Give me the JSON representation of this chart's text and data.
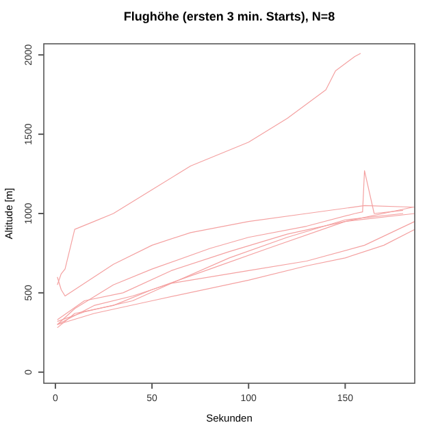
{
  "chart_data": {
    "type": "line",
    "title": "Flughöhe (ersten 3 min. Starts), N=8",
    "xlabel": "Sekunden",
    "ylabel": "Altitude [m]",
    "xlim": [
      -6,
      186
    ],
    "ylim": [
      -70,
      2070
    ],
    "xticks": [
      0,
      50,
      100,
      150
    ],
    "yticks": [
      0,
      500,
      1000,
      1500,
      2000
    ],
    "series": [
      {
        "color": "#f4a0a0",
        "x": [
          1,
          3,
          5,
          10,
          20,
          30,
          50,
          70,
          100,
          120,
          140,
          145,
          155,
          158
        ],
        "values": [
          550,
          620,
          650,
          900,
          950,
          1000,
          1150,
          1300,
          1450,
          1600,
          1780,
          1900,
          1990,
          2010
        ]
      },
      {
        "color": "#f4a0a0",
        "x": [
          1,
          3,
          5,
          10,
          20,
          30,
          50,
          70,
          100,
          130,
          160,
          186
        ],
        "values": [
          600,
          520,
          480,
          520,
          600,
          680,
          800,
          880,
          950,
          1000,
          1050,
          1040
        ]
      },
      {
        "color": "#f4a0a0",
        "x": [
          1,
          10,
          30,
          50,
          80,
          100,
          130,
          155,
          159,
          160,
          165,
          180
        ],
        "values": [
          300,
          400,
          550,
          650,
          780,
          850,
          920,
          1000,
          1010,
          1270,
          1000,
          1020
        ]
      },
      {
        "color": "#f4a0a0",
        "x": [
          1,
          15,
          40,
          60,
          90,
          120,
          150,
          180
        ],
        "values": [
          320,
          380,
          450,
          560,
          720,
          850,
          960,
          1000
        ]
      },
      {
        "color": "#f4a0a0",
        "x": [
          1,
          10,
          30,
          50,
          80,
          110,
          150,
          185
        ],
        "values": [
          280,
          370,
          420,
          520,
          650,
          780,
          950,
          1040
        ]
      },
      {
        "color": "#f4a0a0",
        "x": [
          1,
          20,
          50,
          100,
          130,
          150,
          170,
          186
        ],
        "values": [
          300,
          370,
          450,
          580,
          670,
          720,
          800,
          900
        ]
      },
      {
        "color": "#f4a0a0",
        "x": [
          1,
          20,
          40,
          60,
          100,
          130,
          160,
          186
        ],
        "values": [
          300,
          420,
          480,
          560,
          640,
          700,
          800,
          950
        ]
      },
      {
        "color": "#f4a0a0",
        "x": [
          1,
          15,
          35,
          60,
          90,
          120,
          150,
          186
        ],
        "values": [
          330,
          450,
          500,
          640,
          760,
          870,
          950,
          1000
        ]
      }
    ]
  }
}
